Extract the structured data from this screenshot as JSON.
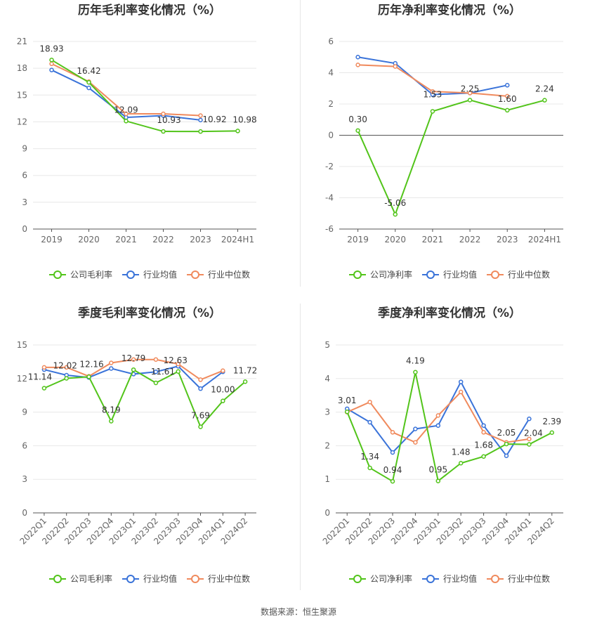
{
  "footer": {
    "source_label": "数据来源：恒生聚源"
  },
  "colors": {
    "company": "#52c41a",
    "industry_avg": "#3a73d9",
    "industry_median": "#f08a5d"
  },
  "chart_data": [
    {
      "type": "line",
      "title": "历年毛利率变化情况（%）",
      "categories": [
        "2019",
        "2020",
        "2021",
        "2022",
        "2023",
        "2024H1"
      ],
      "ylim": [
        0,
        21
      ],
      "yticks": [
        0,
        3,
        6,
        9,
        12,
        15,
        18,
        21
      ],
      "grid": true,
      "legend": "bottom",
      "series": [
        {
          "name": "公司毛利率",
          "role": "company",
          "values": [
            18.93,
            16.42,
            12.09,
            10.93,
            10.92,
            10.98
          ]
        },
        {
          "name": "行业均值",
          "role": "industry_avg",
          "values": [
            17.8,
            15.8,
            12.5,
            12.7,
            12.2,
            null
          ]
        },
        {
          "name": "行业中位数",
          "role": "industry_median",
          "values": [
            18.5,
            16.5,
            12.9,
            12.9,
            12.7,
            null
          ]
        }
      ],
      "data_labels": [
        {
          "index": 0,
          "text": "18.93"
        },
        {
          "index": 1,
          "text": "16.42"
        },
        {
          "index": 2,
          "text": "12.09"
        },
        {
          "index": 3,
          "text": "10.93"
        },
        {
          "index": 4,
          "text": "10.92"
        },
        {
          "index": 5,
          "text": "10.98"
        }
      ]
    },
    {
      "type": "line",
      "title": "历年净利率变化情况（%）",
      "categories": [
        "2019",
        "2020",
        "2021",
        "2022",
        "2023",
        "2024H1"
      ],
      "ylim": [
        -6,
        6
      ],
      "yticks": [
        -6,
        -4,
        -2,
        0,
        2,
        4,
        6
      ],
      "grid": true,
      "legend": "bottom",
      "series": [
        {
          "name": "公司净利率",
          "role": "company",
          "values": [
            0.3,
            -5.06,
            1.53,
            2.25,
            1.6,
            2.24
          ]
        },
        {
          "name": "行业均值",
          "role": "industry_avg",
          "values": [
            5.0,
            4.6,
            2.6,
            2.7,
            3.2,
            null
          ]
        },
        {
          "name": "行业中位数",
          "role": "industry_median",
          "values": [
            4.5,
            4.4,
            2.8,
            2.7,
            2.5,
            null
          ]
        }
      ],
      "data_labels": [
        {
          "index": 0,
          "text": "0.30"
        },
        {
          "index": 1,
          "text": "-5.06"
        },
        {
          "index": 2,
          "text": "1.53"
        },
        {
          "index": 3,
          "text": "2.25"
        },
        {
          "index": 4,
          "text": "1.60"
        },
        {
          "index": 5,
          "text": "2.24"
        }
      ]
    },
    {
      "type": "line",
      "title": "季度毛利率变化情况（%）",
      "categories": [
        "2022Q1",
        "2022Q2",
        "2022Q3",
        "2022Q4",
        "2023Q1",
        "2023Q2",
        "2023Q3",
        "2023Q4",
        "2024Q1",
        "2024Q2"
      ],
      "ylim": [
        0,
        15
      ],
      "yticks": [
        0,
        3,
        6,
        9,
        12,
        15
      ],
      "grid": true,
      "legend": "bottom",
      "series": [
        {
          "name": "公司毛利率",
          "role": "company",
          "values": [
            11.14,
            12.02,
            12.16,
            8.19,
            12.79,
            11.61,
            12.63,
            7.69,
            10.0,
            11.72
          ]
        },
        {
          "name": "行业均值",
          "role": "industry_avg",
          "values": [
            12.8,
            12.3,
            12.1,
            12.9,
            12.4,
            12.6,
            13.1,
            11.1,
            12.6,
            null
          ]
        },
        {
          "name": "行业中位数",
          "role": "industry_median",
          "values": [
            13.0,
            13.0,
            12.2,
            13.4,
            13.7,
            13.7,
            13.3,
            11.9,
            12.7,
            null
          ]
        }
      ],
      "data_labels": [
        {
          "index": 0,
          "text": "11.14"
        },
        {
          "index": 1,
          "text": "12.02"
        },
        {
          "index": 2,
          "text": "12.16"
        },
        {
          "index": 3,
          "text": "8.19"
        },
        {
          "index": 4,
          "text": "12.79"
        },
        {
          "index": 5,
          "text": "11.61"
        },
        {
          "index": 6,
          "text": "12.63"
        },
        {
          "index": 7,
          "text": "7.69"
        },
        {
          "index": 8,
          "text": "10.00"
        },
        {
          "index": 9,
          "text": "11.72"
        }
      ]
    },
    {
      "type": "line",
      "title": "季度净利率变化情况（%）",
      "categories": [
        "2022Q1",
        "2022Q2",
        "2022Q3",
        "2022Q4",
        "2023Q1",
        "2023Q2",
        "2023Q3",
        "2023Q4",
        "2024Q1",
        "2024Q2"
      ],
      "ylim": [
        0,
        5
      ],
      "yticks": [
        0,
        1,
        2,
        3,
        4,
        5
      ],
      "grid": true,
      "legend": "bottom",
      "series": [
        {
          "name": "公司净利率",
          "role": "company",
          "values": [
            3.01,
            1.34,
            0.94,
            4.19,
            0.95,
            1.48,
            1.68,
            2.05,
            2.04,
            2.39
          ]
        },
        {
          "name": "行业均值",
          "role": "industry_avg",
          "values": [
            3.1,
            2.7,
            1.8,
            2.5,
            2.6,
            3.9,
            2.6,
            1.7,
            2.8,
            null
          ]
        },
        {
          "name": "行业中位数",
          "role": "industry_median",
          "values": [
            3.0,
            3.3,
            2.4,
            2.1,
            2.9,
            3.6,
            2.4,
            2.1,
            2.2,
            null
          ]
        }
      ],
      "data_labels": [
        {
          "index": 0,
          "text": "3.01"
        },
        {
          "index": 1,
          "text": "1.34"
        },
        {
          "index": 2,
          "text": "0.94"
        },
        {
          "index": 3,
          "text": "4.19"
        },
        {
          "index": 4,
          "text": "0.95"
        },
        {
          "index": 5,
          "text": "1.48"
        },
        {
          "index": 6,
          "text": "1.68"
        },
        {
          "index": 7,
          "text": "2.05"
        },
        {
          "index": 8,
          "text": "2.04"
        },
        {
          "index": 9,
          "text": "2.39"
        }
      ]
    }
  ]
}
